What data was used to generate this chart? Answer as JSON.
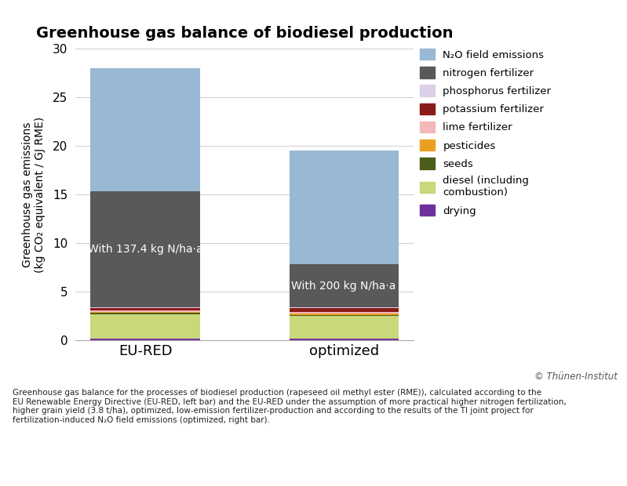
{
  "title": "Greenhouse gas balance of biodiesel production",
  "ylabel_line1": "Greenhouse gas emissions",
  "ylabel_line2": "(kg CO₂ equivalent / GJ RME)",
  "categories": [
    "EU-RED",
    "optimized"
  ],
  "ylim": [
    0,
    30
  ],
  "yticks": [
    0,
    5,
    10,
    15,
    20,
    25,
    30
  ],
  "bar_labels": [
    "With 137.4 kg N/ha·a",
    "With 200 kg N/ha·a"
  ],
  "segments": [
    {
      "label": "drying",
      "color": "#7030a0",
      "values": [
        0.2,
        0.2
      ]
    },
    {
      "label": "diesel (including\ncombustion)",
      "color": "#c8d87a",
      "values": [
        2.5,
        2.3
      ]
    },
    {
      "label": "seeds",
      "color": "#4a5e1a",
      "values": [
        0.12,
        0.12
      ]
    },
    {
      "label": "pesticides",
      "color": "#e8a020",
      "values": [
        0.12,
        0.12
      ]
    },
    {
      "label": "lime fertilizer",
      "color": "#f4b8b8",
      "values": [
        0.15,
        0.15
      ]
    },
    {
      "label": "potassium fertilizer",
      "color": "#8b1a1a",
      "values": [
        0.22,
        0.38
      ]
    },
    {
      "label": "phosphorus fertilizer",
      "color": "#dcd0e8",
      "values": [
        0.09,
        0.09
      ]
    },
    {
      "label": "nitrogen fertilizer",
      "color": "#595959",
      "values": [
        11.9,
        4.44
      ]
    },
    {
      "label": "N₂O field emissions",
      "color": "#99b8d4",
      "values": [
        12.7,
        11.7
      ]
    }
  ],
  "footnote": "Greenhouse gas balance for the processes of biodiesel production (rapeseed oil methyl ester (RME)), calculated according to the\nEU Renewable Energy Directive (EU-RED, left bar) and the EU-RED under the assumption of more practical higher nitrogen fertilization,\nhigher grain yield (3.8 t/ha), optimized, low-emission fertilizer-production and according to the results of the TI joint project for\nfertilization-induced N₂O field emissions (optimized, right bar).",
  "credit": "© Thünen-Institut",
  "background_color": "#ffffff",
  "bar_width": 0.55,
  "bar_text_color": "#ffffff",
  "bar_text_fontsize": 10,
  "nitro_segment_idx": 7
}
